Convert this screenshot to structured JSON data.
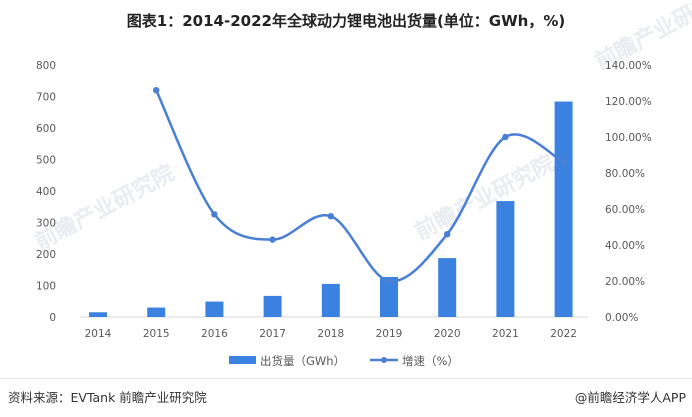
{
  "header": {
    "title": "图表1：2014-2022年全球动力锂电池出货量(单位：GWh，%)"
  },
  "footer": {
    "source": "资料来源：EVTank 前瞻产业研究院",
    "credit": "@前瞻经济学人APP"
  },
  "watermark": {
    "text": "前瞻产业研究院"
  },
  "colors": {
    "bar": "#3b82e0",
    "line": "#4a7fd4",
    "axis": "#d9d9d9",
    "tick_text": "#595959"
  },
  "chart_data": {
    "type": "bar+line",
    "title": "图表1：2014-2022年全球动力锂电池出货量(单位：GWh，%)",
    "categories": [
      "2014",
      "2015",
      "2016",
      "2017",
      "2018",
      "2019",
      "2020",
      "2021",
      "2022"
    ],
    "series": [
      {
        "name": "出货量（GWh）",
        "type": "bar",
        "axis": "left",
        "values": [
          15,
          30,
          49,
          67,
          105,
          127,
          187,
          368,
          684
        ]
      },
      {
        "name": "增速（%）",
        "type": "line",
        "axis": "right",
        "values": [
          null,
          126,
          57,
          43,
          56,
          20,
          46,
          100,
          86
        ]
      }
    ],
    "left_axis": {
      "ylim": [
        0,
        800
      ],
      "ticks": [
        "0",
        "100",
        "200",
        "300",
        "400",
        "500",
        "600",
        "700",
        "800"
      ]
    },
    "right_axis": {
      "ylim": [
        0,
        140
      ],
      "ticks": [
        "0.00%",
        "20.00%",
        "40.00%",
        "60.00%",
        "80.00%",
        "100.00%",
        "120.00%",
        "140.00%"
      ]
    },
    "xlabel": "",
    "ylabel": "",
    "grid": false,
    "legend": {
      "position": "bottom",
      "entries": [
        "出货量（GWh）",
        "增速（%）"
      ]
    }
  }
}
